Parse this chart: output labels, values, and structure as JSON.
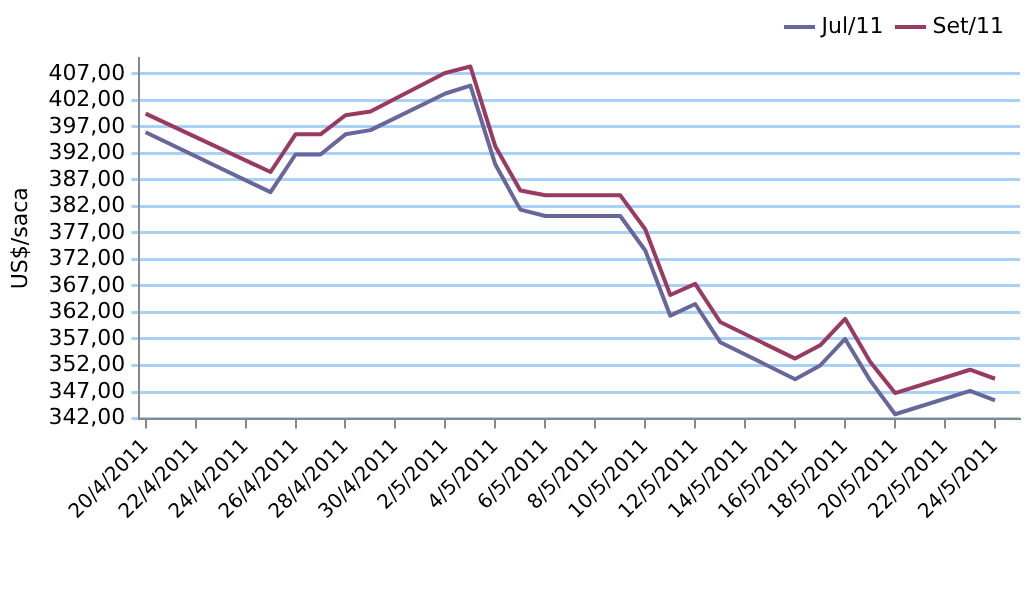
{
  "chart_data": {
    "type": "line",
    "ylabel": "US$/saca",
    "x": [
      "2011-04-20",
      "2011-04-25",
      "2011-04-26",
      "2011-04-27",
      "2011-04-28",
      "2011-04-29",
      "2011-05-02",
      "2011-05-03",
      "2011-05-04",
      "2011-05-05",
      "2011-05-06",
      "2011-05-09",
      "2011-05-10",
      "2011-05-11",
      "2011-05-12",
      "2011-05-13",
      "2011-05-16",
      "2011-05-17",
      "2011-05-18",
      "2011-05-19",
      "2011-05-20",
      "2011-05-23",
      "2011-05-24"
    ],
    "series": [
      {
        "name": "Jul/11",
        "color": "#68679c",
        "values": [
          396.0,
          384.7,
          391.8,
          391.8,
          395.6,
          396.4,
          403.3,
          404.8,
          389.9,
          381.4,
          380.2,
          380.2,
          373.7,
          361.4,
          363.6,
          356.4,
          349.4,
          352.0,
          357.0,
          349.2,
          342.8,
          347.2,
          345.4
        ]
      },
      {
        "name": "Set/11",
        "color": "#983a62",
        "values": [
          399.5,
          388.5,
          395.6,
          395.6,
          399.2,
          399.9,
          407.2,
          408.4,
          393.3,
          385.0,
          384.1,
          384.1,
          377.7,
          365.3,
          367.4,
          360.2,
          353.3,
          355.8,
          360.8,
          352.7,
          346.8,
          351.2,
          349.5
        ]
      }
    ],
    "xlim": [
      "2011-04-19T18:00",
      "2011-05-25"
    ],
    "xticks": [
      {
        "value": "2011-04-20",
        "label": "20/4/2011"
      },
      {
        "value": "2011-04-22",
        "label": "22/4/2011"
      },
      {
        "value": "2011-04-24",
        "label": "24/4/2011"
      },
      {
        "value": "2011-04-26",
        "label": "26/4/2011"
      },
      {
        "value": "2011-04-28",
        "label": "28/4/2011"
      },
      {
        "value": "2011-04-30",
        "label": "30/4/2011"
      },
      {
        "value": "2011-05-02",
        "label": "2/5/2011"
      },
      {
        "value": "2011-05-04",
        "label": "4/5/2011"
      },
      {
        "value": "2011-05-06",
        "label": "6/5/2011"
      },
      {
        "value": "2011-05-08",
        "label": "8/5/2011"
      },
      {
        "value": "2011-05-10",
        "label": "10/5/2011"
      },
      {
        "value": "2011-05-12",
        "label": "12/5/2011"
      },
      {
        "value": "2011-05-14",
        "label": "14/5/2011"
      },
      {
        "value": "2011-05-16",
        "label": "16/5/2011"
      },
      {
        "value": "2011-05-18",
        "label": "18/5/2011"
      },
      {
        "value": "2011-05-20",
        "label": "20/5/2011"
      },
      {
        "value": "2011-05-22",
        "label": "22/5/2011"
      },
      {
        "value": "2011-05-24",
        "label": "24/5/2011"
      }
    ],
    "ylim": [
      342,
      410
    ],
    "yticks": [
      {
        "value": 342,
        "label": "342,00"
      },
      {
        "value": 347,
        "label": "347,00"
      },
      {
        "value": 352,
        "label": "352,00"
      },
      {
        "value": 357,
        "label": "357,00"
      },
      {
        "value": 362,
        "label": "362,00"
      },
      {
        "value": 367,
        "label": "367,00"
      },
      {
        "value": 372,
        "label": "372,00"
      },
      {
        "value": 377,
        "label": "377,00"
      },
      {
        "value": 382,
        "label": "382,00"
      },
      {
        "value": 387,
        "label": "387,00"
      },
      {
        "value": 392,
        "label": "392,00"
      },
      {
        "value": 397,
        "label": "397,00"
      },
      {
        "value": 402,
        "label": "402,00"
      },
      {
        "value": 407,
        "label": "407,00"
      }
    ],
    "grid": "y",
    "legend": "top",
    "marker": "none",
    "line_style": "solid"
  }
}
